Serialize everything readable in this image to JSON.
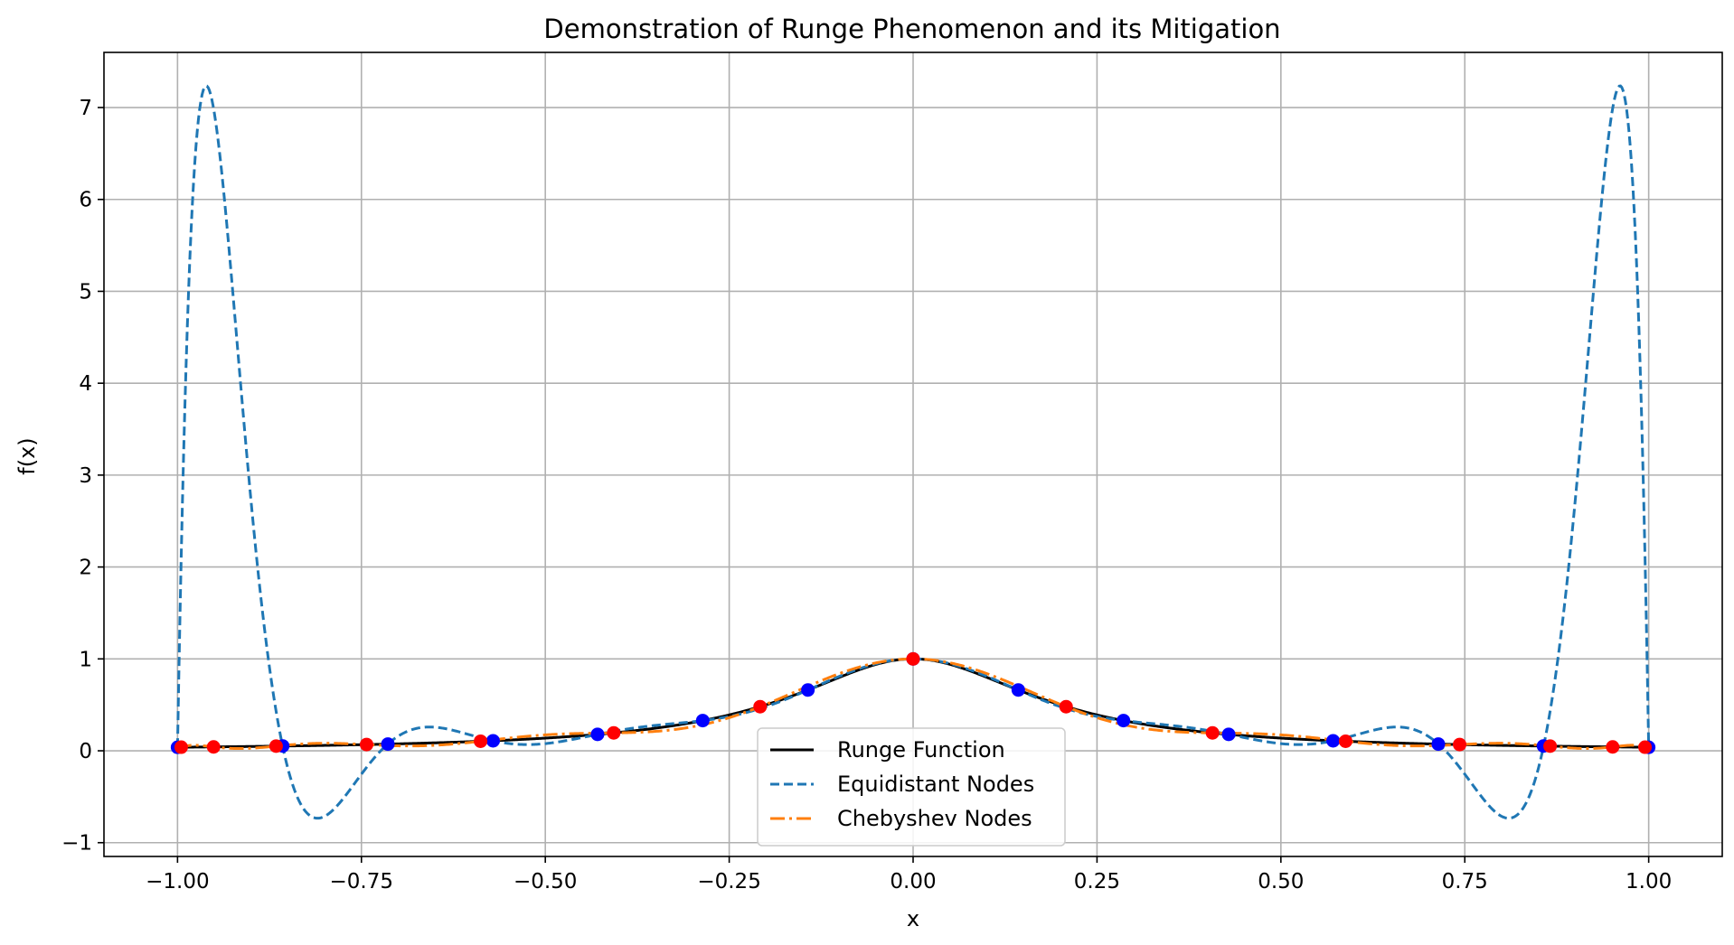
{
  "chart_data": {
    "type": "line",
    "title": "Demonstration of Runge Phenomenon and its Mitigation",
    "xlabel": "x",
    "ylabel": "f(x)",
    "xlim": [
      -1.1,
      1.1
    ],
    "ylim": [
      -1.15,
      7.6
    ],
    "xticks": [
      -1.0,
      -0.75,
      -0.5,
      -0.25,
      0.0,
      0.25,
      0.5,
      0.75,
      1.0
    ],
    "xtick_labels": [
      "−1.00",
      "−0.75",
      "−0.50",
      "−0.25",
      "0.00",
      "0.25",
      "0.50",
      "0.75",
      "1.00"
    ],
    "yticks": [
      -1,
      0,
      1,
      2,
      3,
      4,
      5,
      6,
      7
    ],
    "ytick_labels": [
      "−1",
      "0",
      "1",
      "2",
      "3",
      "4",
      "5",
      "6",
      "7"
    ],
    "grid": true,
    "legend_position": "lower-center",
    "series": [
      {
        "name": "Runge Function",
        "function": "1/(1+25x^2)",
        "domain": [
          -1.0,
          1.0
        ],
        "color": "#000000",
        "style": "solid"
      },
      {
        "name": "Equidistant Nodes",
        "function": "degree-14 interpolating polynomial of 1/(1+25x^2) on 15 equally spaced nodes",
        "domain": [
          -1.0,
          1.0
        ],
        "color": "#1f77b4",
        "style": "dashed"
      },
      {
        "name": "Chebyshev Nodes",
        "function": "degree-14 interpolating polynomial of 1/(1+25x^2) on 15 Chebyshev nodes",
        "domain": [
          -1.0,
          1.0
        ],
        "color": "#ff7f0e",
        "style": "dashdot"
      }
    ],
    "scatter": [
      {
        "role": "equidistant-nodes",
        "color": "#0000ff",
        "x": [
          -1.0,
          -0.857,
          -0.714,
          -0.571,
          -0.429,
          -0.286,
          -0.143,
          0.0,
          0.143,
          0.286,
          0.429,
          0.571,
          0.714,
          0.857,
          1.0
        ],
        "y": [
          0.038,
          0.052,
          0.073,
          0.109,
          0.179,
          0.329,
          0.662,
          1.0,
          0.662,
          0.329,
          0.179,
          0.109,
          0.073,
          0.052,
          0.038
        ]
      },
      {
        "role": "chebyshev-nodes",
        "color": "#ff0000",
        "x": [
          -0.995,
          -0.951,
          -0.866,
          -0.743,
          -0.588,
          -0.407,
          -0.208,
          0.0,
          0.208,
          0.407,
          0.588,
          0.743,
          0.866,
          0.951,
          0.995
        ],
        "y": [
          0.039,
          0.042,
          0.051,
          0.068,
          0.104,
          0.195,
          0.48,
          1.0,
          0.48,
          0.195,
          0.104,
          0.068,
          0.051,
          0.042,
          0.039
        ]
      }
    ]
  }
}
